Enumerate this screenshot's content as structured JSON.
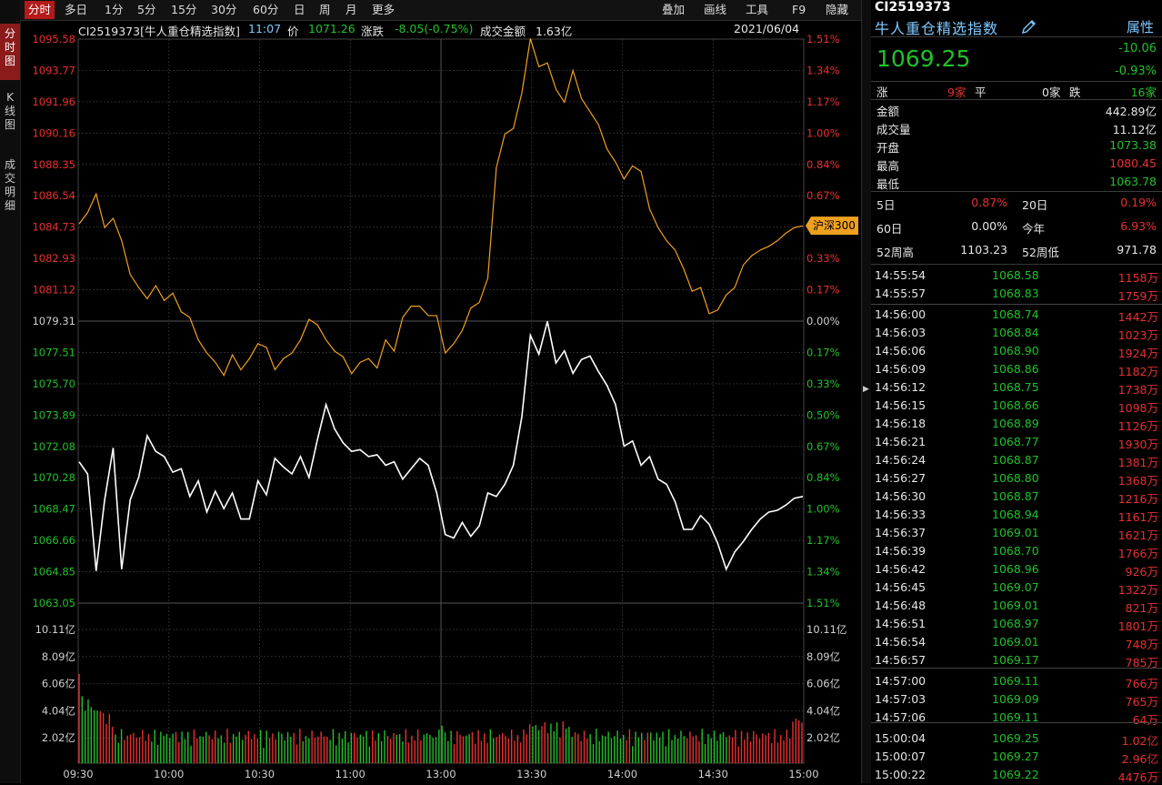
{
  "sidebar": {
    "items": [
      {
        "label": "分时图",
        "active": true
      },
      {
        "label": "K线图",
        "active": false
      },
      {
        "label": "成交明细",
        "active": false
      }
    ]
  },
  "toolbar": {
    "periods": [
      "分时",
      "多日",
      "1分",
      "5分",
      "15分",
      "30分",
      "60分",
      "日",
      "周",
      "月",
      "更多"
    ],
    "active_period": "分时",
    "right": [
      "叠加",
      "画线",
      "工具",
      "F9",
      "隐藏"
    ]
  },
  "infobar": {
    "title": "CI2519373[牛人重仓精选指数]",
    "time": "11:07",
    "price_label": "价",
    "price": "1071.26",
    "change_label": "涨跌",
    "change": "-8.05(-0.75%)",
    "amount_label": "成交金额",
    "amount": "1.63亿",
    "date": "2021/06/04"
  },
  "chart_data": {
    "type": "line",
    "x_ticks": [
      "09:30",
      "10:00",
      "10:30",
      "11:00",
      "13:00",
      "13:30",
      "14:00",
      "14:30",
      "15:00"
    ],
    "price_axis": [
      "1095.58",
      "1093.77",
      "1091.96",
      "1090.16",
      "1088.35",
      "1086.54",
      "1084.73",
      "1082.93",
      "1081.12",
      "1079.31",
      "1077.51",
      "1075.70",
      "1073.89",
      "1072.08",
      "1070.28",
      "1068.47",
      "1066.66",
      "1064.85",
      "1063.05"
    ],
    "pct_axis": [
      "1.51%",
      "1.34%",
      "1.17%",
      "1.00%",
      "0.84%",
      "0.67%",
      "0.50%",
      "0.33%",
      "0.17%",
      "0.00%",
      "0.17%",
      "0.33%",
      "0.50%",
      "0.67%",
      "0.84%",
      "1.00%",
      "1.17%",
      "1.34%",
      "1.51%"
    ],
    "volume_axis": [
      "10.11亿",
      "8.09亿",
      "6.06亿",
      "4.04亿",
      "2.02亿"
    ],
    "base_price": 1079.31,
    "overlay_label": "沪深300",
    "series": [
      {
        "name": "牛人重仓精选指数",
        "color": "#ffffff",
        "y": [
          1071.2,
          1070.5,
          1064.9,
          1069,
          1072,
          1065,
          1069,
          1070.3,
          1072.7,
          1071.8,
          1071.5,
          1070.6,
          1070.8,
          1069.2,
          1070.1,
          1068.3,
          1069.5,
          1068.5,
          1069.4,
          1067.9,
          1067.9,
          1070.1,
          1069.3,
          1071.4,
          1070.9,
          1070.5,
          1071.5,
          1070.3,
          1072.5,
          1074.5,
          1073.1,
          1072.3,
          1071.8,
          1071.9,
          1071.5,
          1071.6,
          1071.0,
          1071.2,
          1070.2,
          1070.8,
          1071.4,
          1071.0,
          1069.4,
          1067.0,
          1066.8,
          1067.7,
          1066.9,
          1067.5,
          1069.4,
          1069.2,
          1069.9,
          1071.0,
          1073.8,
          1078.5,
          1077.4,
          1079.3,
          1076.9,
          1077.6,
          1076.3,
          1077.1,
          1077.3,
          1076.4,
          1075.6,
          1074.5,
          1072.1,
          1072.4,
          1071.0,
          1071.5,
          1070.2,
          1069.9,
          1068.9,
          1067.3,
          1067.3,
          1068.1,
          1067.6,
          1066.5,
          1065.0,
          1066.0,
          1066.6,
          1067.3,
          1067.9,
          1068.3,
          1068.4,
          1068.7,
          1069.1,
          1069.2
        ]
      },
      {
        "name": "沪深300",
        "color": "#f0a020",
        "y": [
          0.52,
          0.58,
          0.68,
          0.5,
          0.55,
          0.43,
          0.25,
          0.18,
          0.12,
          0.19,
          0.11,
          0.15,
          0.05,
          0.02,
          -0.1,
          -0.17,
          -0.22,
          -0.29,
          -0.18,
          -0.26,
          -0.2,
          -0.12,
          -0.14,
          -0.26,
          -0.2,
          -0.17,
          -0.1,
          0.01,
          -0.02,
          -0.1,
          -0.16,
          -0.19,
          -0.28,
          -0.22,
          -0.2,
          -0.25,
          -0.1,
          -0.16,
          0.02,
          0.08,
          0.08,
          0.03,
          0.03,
          -0.17,
          -0.12,
          -0.05,
          0.07,
          0.1,
          0.23,
          0.82,
          1.0,
          1.03,
          1.22,
          1.51,
          1.36,
          1.38,
          1.24,
          1.17,
          1.34,
          1.19,
          1.12,
          1.05,
          0.92,
          0.85,
          0.76,
          0.83,
          0.8,
          0.6,
          0.5,
          0.43,
          0.38,
          0.28,
          0.16,
          0.18,
          0.04,
          0.06,
          0.14,
          0.18,
          0.3,
          0.35,
          0.38,
          0.4,
          0.43,
          0.47,
          0.5,
          0.51
        ]
      }
    ]
  },
  "quote": {
    "code": "CI2519373",
    "name": "牛人重仓精选指数",
    "attr_button": "属性",
    "price": "1069.25",
    "change": "-10.06",
    "change_pct": "-0.93%",
    "breadth": {
      "up_label": "涨",
      "up": "9家",
      "flat_label": "平",
      "flat": "0家",
      "down_label": "跌",
      "down": "16家"
    },
    "stats": [
      {
        "label": "金额",
        "value": "442.89亿",
        "color": "white"
      },
      {
        "label": "成交量",
        "value": "11.12亿",
        "color": "white"
      },
      {
        "label": "开盘",
        "value": "1073.38",
        "color": "green"
      },
      {
        "label": "最高",
        "value": "1080.45",
        "color": "red"
      },
      {
        "label": "最低",
        "value": "1063.78",
        "color": "green"
      }
    ],
    "periods": [
      {
        "l1": "5日",
        "v1": "0.87%",
        "c1": "red",
        "l2": "20日",
        "v2": "0.19%",
        "c2": "red"
      },
      {
        "l1": "60日",
        "v1": "0.00%",
        "c1": "white",
        "l2": "今年",
        "v2": "6.93%",
        "c2": "red"
      },
      {
        "l1": "52周高",
        "v1": "1103.23",
        "c1": "white",
        "l2": "52周低",
        "v2": "971.78",
        "c2": "white"
      }
    ],
    "ticks": [
      [
        "14:55:54",
        "1068.58",
        "1158万"
      ],
      [
        "14:55:57",
        "1068.83",
        "1759万"
      ],
      [
        "14:56:00",
        "1068.74",
        "1442万"
      ],
      [
        "14:56:03",
        "1068.84",
        "1023万"
      ],
      [
        "14:56:06",
        "1068.90",
        "1924万"
      ],
      [
        "14:56:09",
        "1068.86",
        "1182万"
      ],
      [
        "14:56:12",
        "1068.75",
        "1738万"
      ],
      [
        "14:56:15",
        "1068.66",
        "1098万"
      ],
      [
        "14:56:18",
        "1068.89",
        "1126万"
      ],
      [
        "14:56:21",
        "1068.77",
        "1930万"
      ],
      [
        "14:56:24",
        "1068.87",
        "1381万"
      ],
      [
        "14:56:27",
        "1068.80",
        "1368万"
      ],
      [
        "14:56:30",
        "1068.87",
        "1216万"
      ],
      [
        "14:56:33",
        "1068.94",
        "1161万"
      ],
      [
        "14:56:37",
        "1069.01",
        "1621万"
      ],
      [
        "14:56:39",
        "1068.70",
        "1766万"
      ],
      [
        "14:56:42",
        "1068.96",
        "926万"
      ],
      [
        "14:56:45",
        "1069.07",
        "1322万"
      ],
      [
        "14:56:48",
        "1069.01",
        "821万"
      ],
      [
        "14:56:51",
        "1068.97",
        "1801万"
      ],
      [
        "14:56:54",
        "1069.01",
        "748万"
      ],
      [
        "14:56:57",
        "1069.17",
        "785万"
      ],
      [
        "14:57:00",
        "1069.11",
        "766万"
      ],
      [
        "14:57:03",
        "1069.09",
        "765万"
      ],
      [
        "14:57:06",
        "1069.11",
        "64万"
      ],
      [
        "15:00:04",
        "1069.25",
        "1.02亿"
      ],
      [
        "15:00:07",
        "1069.27",
        "2.96亿"
      ],
      [
        "15:00:22",
        "1069.22",
        "4476万"
      ]
    ]
  }
}
